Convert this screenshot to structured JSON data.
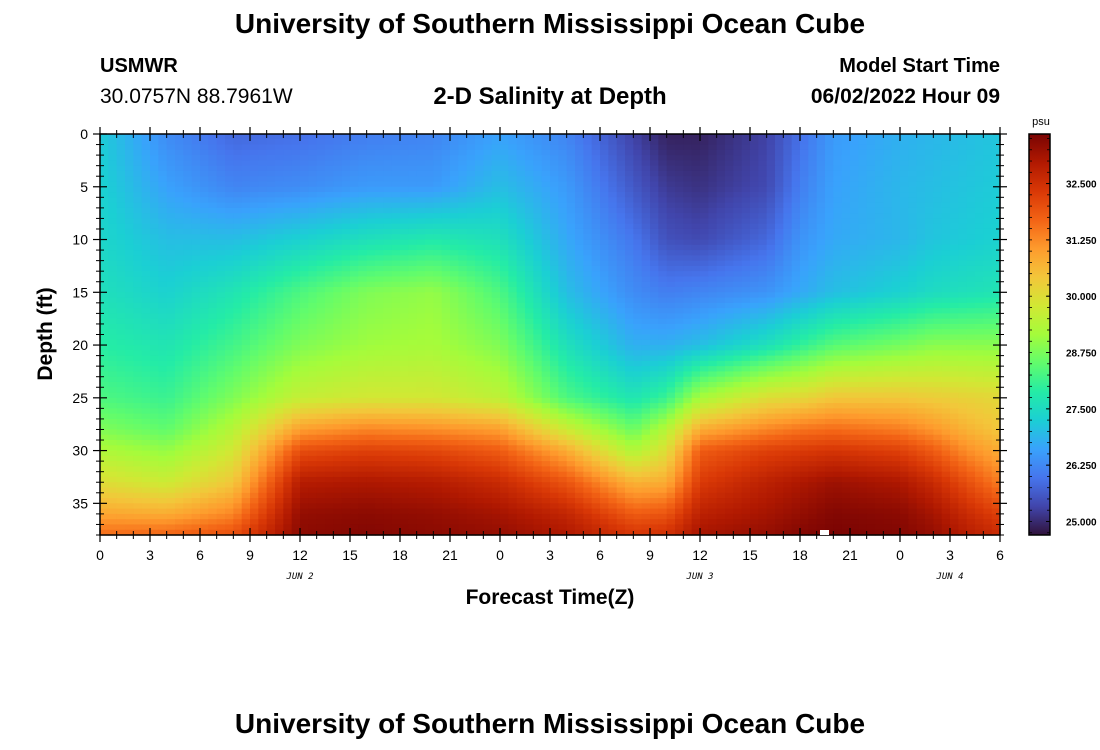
{
  "header": {
    "title": "University of Southern Mississippi Ocean Cube",
    "station": "USMWR",
    "coords": "30.0757N  88.7961W",
    "subtitle": "2-D Salinity at Depth",
    "model_start_label": "Model Start Time",
    "model_start_value": "06/02/2022 Hour 09"
  },
  "footer": {
    "title": "University of Southern Mississippi Ocean Cube"
  },
  "chart_data": {
    "type": "heatmap",
    "title": "2-D Salinity at Depth",
    "xlabel": "Forecast Time(Z)",
    "ylabel": "Depth (ft)",
    "x_ticks": [
      "0",
      "3",
      "6",
      "9",
      "12",
      "15",
      "18",
      "21",
      "0",
      "3",
      "6",
      "9",
      "12",
      "15",
      "18",
      "21",
      "0",
      "3",
      "6"
    ],
    "day_labels": [
      {
        "label": "JUN 2",
        "hour": 12
      },
      {
        "label": "JUN 3",
        "hour": 36
      },
      {
        "label": "JUN 4",
        "hour": 51
      }
    ],
    "y_ticks": [
      0,
      5,
      10,
      15,
      20,
      25,
      30,
      35
    ],
    "ylim": [
      0,
      38
    ],
    "xlim_hours": [
      0,
      54
    ],
    "colorbar": {
      "unit": "psu",
      "min": 24.7,
      "max": 33.6,
      "tick_values": [
        25.0,
        26.25,
        27.5,
        28.75,
        30.0,
        31.25,
        32.5
      ],
      "tick_labels": [
        "25.000",
        "26.250",
        "27.500",
        "28.750",
        "30.000",
        "31.250",
        "32.500"
      ]
    },
    "depth_levels_ft": [
      0,
      5,
      10,
      15,
      20,
      25,
      28,
      30,
      33,
      36,
      38
    ],
    "time_hours": [
      0,
      4,
      8,
      12,
      16,
      20,
      24,
      28,
      32,
      34,
      36,
      40,
      42,
      44,
      48,
      50,
      52,
      54
    ],
    "salinity_psu": [
      [
        27.2,
        26.3,
        25.8,
        25.9,
        26.1,
        26.2,
        26.6,
        26.2,
        25.3,
        24.9,
        24.9,
        25.3,
        25.9,
        26.5,
        26.8,
        26.9,
        27.0,
        27.1
      ],
      [
        27.3,
        26.6,
        26.2,
        26.3,
        26.5,
        26.5,
        27.0,
        26.5,
        25.6,
        25.2,
        25.1,
        25.4,
        26.1,
        26.6,
        26.9,
        27.0,
        27.1,
        27.2
      ],
      [
        27.4,
        27.0,
        27.0,
        27.3,
        27.6,
        27.8,
        27.6,
        26.7,
        26.0,
        25.5,
        25.4,
        25.8,
        26.4,
        26.7,
        26.9,
        27.1,
        27.2,
        27.3
      ],
      [
        27.6,
        27.3,
        27.7,
        28.3,
        28.8,
        29.0,
        28.3,
        27.0,
        26.3,
        26.1,
        26.2,
        26.4,
        26.7,
        27.0,
        27.3,
        27.5,
        27.6,
        27.7
      ],
      [
        27.9,
        27.7,
        28.2,
        28.8,
        29.1,
        29.2,
        28.8,
        27.6,
        26.8,
        26.8,
        27.0,
        27.6,
        28.0,
        28.4,
        28.7,
        28.9,
        28.9,
        28.9
      ],
      [
        28.3,
        28.1,
        28.8,
        29.6,
        29.8,
        29.8,
        29.5,
        28.3,
        27.7,
        28.1,
        29.2,
        30.0,
        30.1,
        30.4,
        30.4,
        30.3,
        30.2,
        30.1
      ],
      [
        28.8,
        28.5,
        29.4,
        31.0,
        31.3,
        31.2,
        31.0,
        29.7,
        28.6,
        29.4,
        30.8,
        31.3,
        31.5,
        31.6,
        31.4,
        31.1,
        30.7,
        30.4
      ],
      [
        29.3,
        29.0,
        29.8,
        32.0,
        32.2,
        32.1,
        31.8,
        30.8,
        29.3,
        30.0,
        31.8,
        32.2,
        32.3,
        32.4,
        32.2,
        31.8,
        31.2,
        30.8
      ],
      [
        30.0,
        29.7,
        30.4,
        32.9,
        33.0,
        32.9,
        32.6,
        31.9,
        30.7,
        30.8,
        32.3,
        32.8,
        33.0,
        33.2,
        33.0,
        32.6,
        32.0,
        31.4
      ],
      [
        30.9,
        30.8,
        31.3,
        33.3,
        33.4,
        33.3,
        33.1,
        32.7,
        31.8,
        31.9,
        32.8,
        33.1,
        33.3,
        33.5,
        33.4,
        33.1,
        32.6,
        32.2
      ],
      [
        31.6,
        31.7,
        32.0,
        33.4,
        33.5,
        33.4,
        33.3,
        33.0,
        32.4,
        32.5,
        33.1,
        33.3,
        33.5,
        33.6,
        33.5,
        33.3,
        32.9,
        32.6
      ]
    ],
    "colormap": [
      "#30123b",
      "#4145ab",
      "#4675ed",
      "#39a2fc",
      "#1bcfd4",
      "#24eca6",
      "#61fc6c",
      "#a4fc3b",
      "#d1e834",
      "#f3c63a",
      "#fe9b2d",
      "#f36315",
      "#d93806",
      "#b11901",
      "#7a0403"
    ]
  }
}
